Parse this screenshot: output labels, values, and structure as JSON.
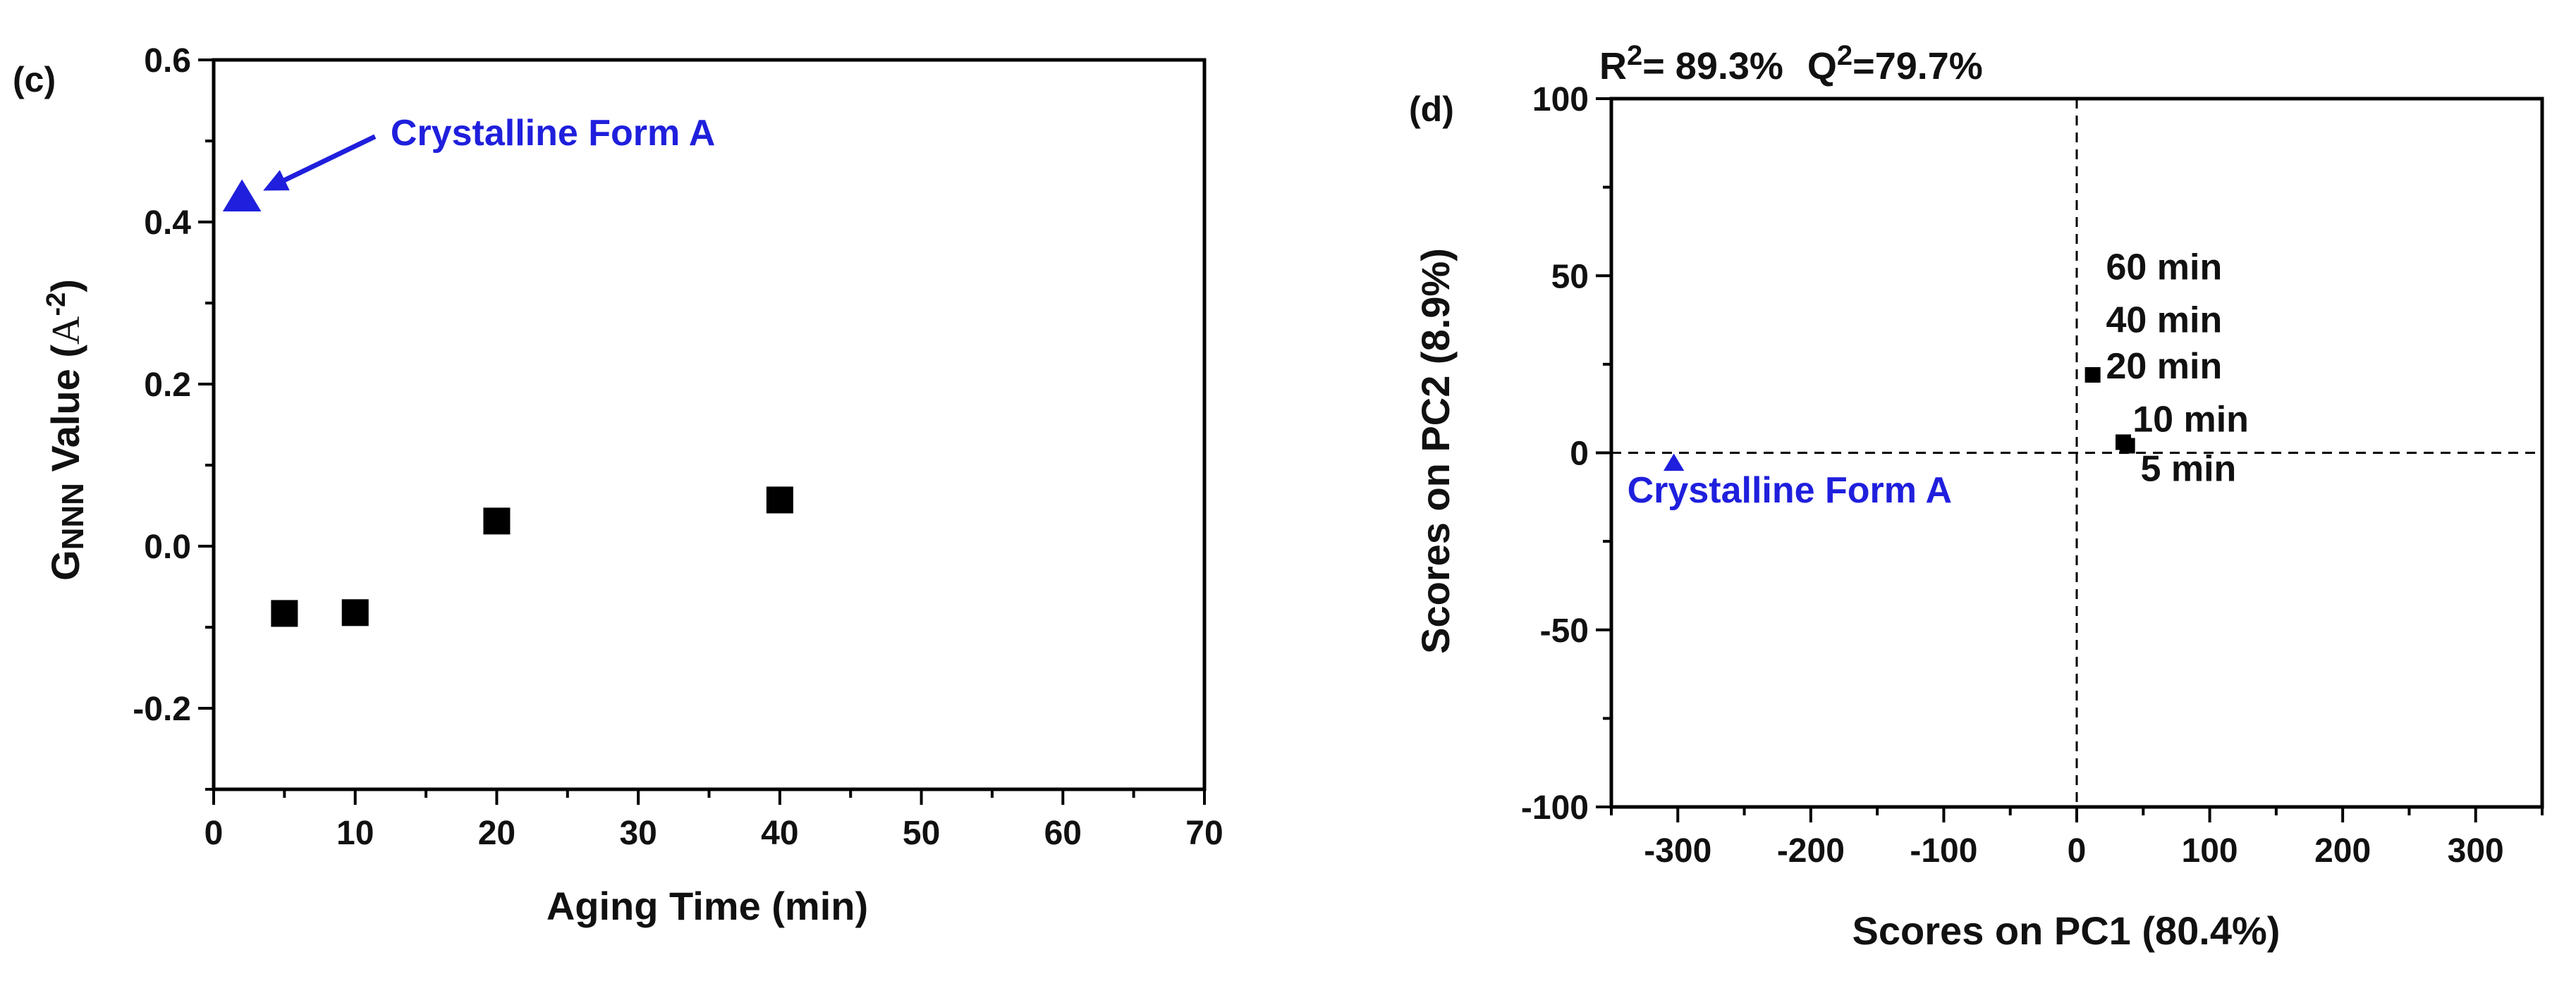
{
  "chart_data": [
    {
      "type": "scatter",
      "panel_label": "(c)",
      "title": "",
      "xlabel": "Aging Time (min)",
      "ylabel": {
        "prefix": "G",
        "sub": "NNN",
        "middle": " Value (",
        "unit": "A",
        "sup": "-2",
        "suffix": ")"
      },
      "xlim": [
        0,
        70
      ],
      "ylim": [
        -0.3,
        0.6
      ],
      "xticks": [
        "0",
        "10",
        "20",
        "30",
        "40",
        "50",
        "60",
        "70"
      ],
      "yticks": [
        "-0.2",
        "0.0",
        "0.2",
        "0.4",
        "0.6"
      ],
      "grid": false,
      "series": [
        {
          "marker": "square",
          "color": "#000000",
          "x": [
            5,
            10,
            20,
            40
          ],
          "y": [
            -0.083,
            -0.082,
            0.031,
            0.057
          ]
        },
        {
          "marker": "triangle",
          "color": "#1f1fdd",
          "x": [
            2
          ],
          "y": [
            0.43
          ]
        }
      ],
      "annotations": [
        {
          "text": "Crystalline Form A",
          "color": "#1f1fdd",
          "arrow": true,
          "x": 12.5,
          "y": 0.495,
          "target": [
            2,
            0.43
          ]
        }
      ]
    },
    {
      "type": "scatter",
      "panel_label": "(d)",
      "title": "",
      "stats_label": {
        "r_prefix": "R",
        "r_sup": "2",
        "r_value": "= 89.3%",
        "q_prefix": "Q",
        "q_sup": "2",
        "q_value": "=79.7%"
      },
      "xlabel": "Scores on PC1 (80.4%)",
      "ylabel": "Scores on PC2 (8.9%)",
      "xlim": [
        -350,
        350
      ],
      "ylim": [
        -100,
        100
      ],
      "xticks": [
        "-300",
        "-200",
        "-100",
        "0",
        "100",
        "200",
        "300"
      ],
      "yticks": [
        "-100",
        "-50",
        "0",
        "50",
        "100"
      ],
      "grid": false,
      "reference_lines": {
        "x": 0,
        "y": 0,
        "style": "dashed"
      },
      "series": [
        {
          "marker": "square",
          "color": "#000000",
          "x": [
            12,
            35,
            38
          ],
          "y": [
            22,
            3,
            2
          ]
        },
        {
          "marker": "triangle",
          "color": "#1f1fdd",
          "x": [
            -303
          ],
          "y": [
            -3
          ]
        }
      ],
      "annotations": [
        {
          "text": "60 min",
          "color": "#000000",
          "x": 22,
          "y": 49
        },
        {
          "text": "40 min",
          "color": "#000000",
          "x": 22,
          "y": 34
        },
        {
          "text": "20 min",
          "color": "#000000",
          "x": 22,
          "y": 21
        },
        {
          "text": "10 min",
          "color": "#000000",
          "x": 42,
          "y": 6
        },
        {
          "text": "5 min",
          "color": "#000000",
          "x": 48,
          "y": -8
        },
        {
          "text": "Crystalline Form A",
          "color": "#1f1fdd",
          "x": -338,
          "y": -14
        }
      ]
    }
  ]
}
